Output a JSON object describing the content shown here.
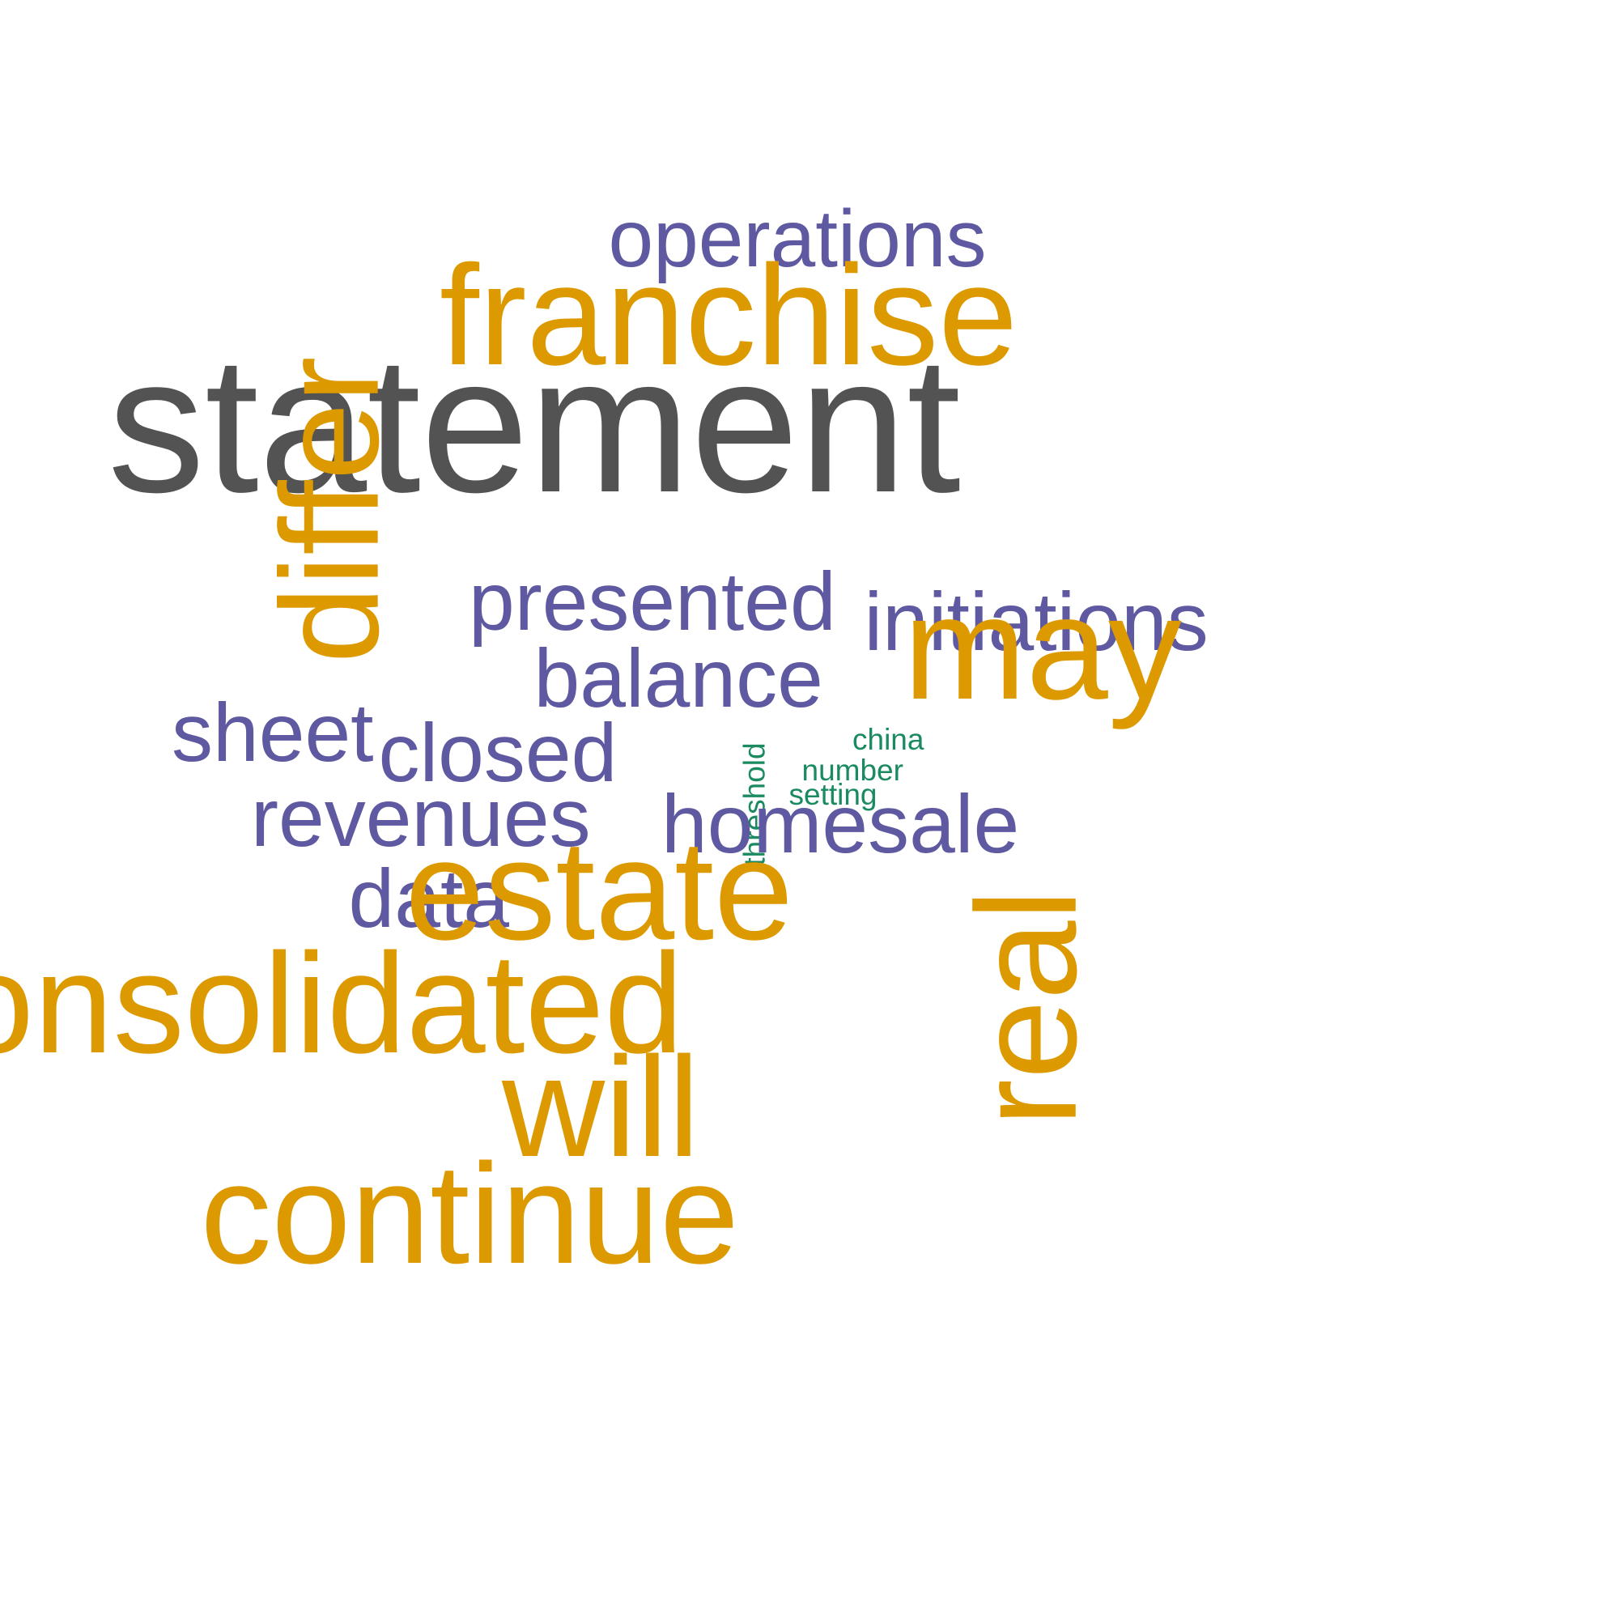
{
  "word_cloud": {
    "colors": {
      "gold": "#dd9900",
      "purple": "#5e59a0",
      "gray": "#535353",
      "green": "#1b8a60"
    },
    "words": {
      "statement": "statement",
      "franchise": "franchise",
      "operations": "operations",
      "differ": "differ",
      "presented": "presented",
      "initiations": "initiations",
      "may": "may",
      "balance": "balance",
      "sheet": "sheet",
      "closed": "closed",
      "china": "china",
      "number": "number",
      "setting": "setting",
      "threshold": "threshold",
      "revenues": "revenues",
      "homesale": "homesale",
      "data": "data",
      "estate": "estate",
      "real": "real",
      "consolidated": "consolidated",
      "will": "will",
      "continue": "continue"
    }
  }
}
